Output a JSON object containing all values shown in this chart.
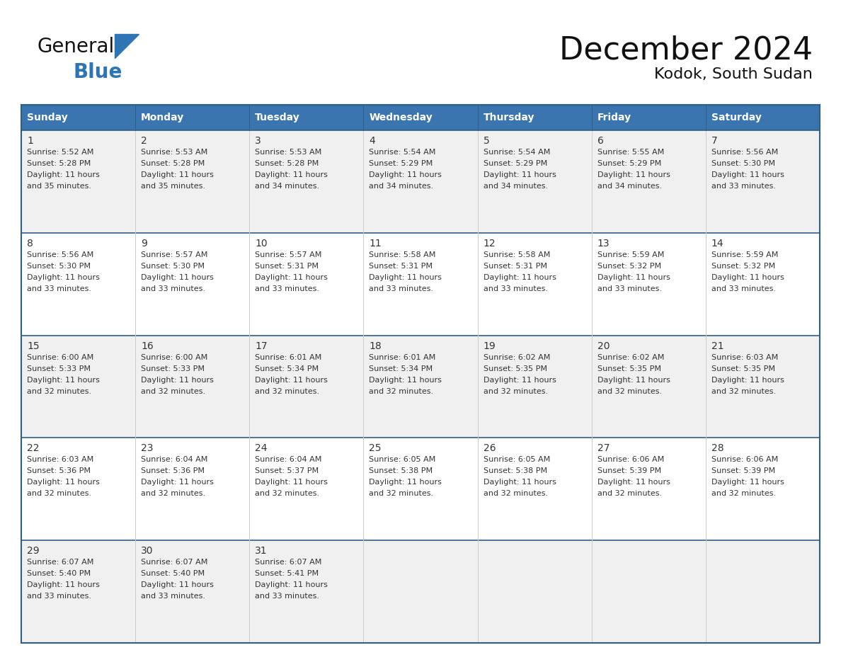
{
  "title": "December 2024",
  "subtitle": "Kodok, South Sudan",
  "days_of_week": [
    "Sunday",
    "Monday",
    "Tuesday",
    "Wednesday",
    "Thursday",
    "Friday",
    "Saturday"
  ],
  "header_bg": "#3a75b0",
  "header_text": "#FFFFFF",
  "cell_bg_white": "#FFFFFF",
  "cell_bg_gray": "#f0f0f0",
  "border_color_blue": "#2e5f8a",
  "border_color_light": "#cccccc",
  "day_num_color": "#333333",
  "text_color": "#333333",
  "title_color": "#111111",
  "logo_general_color": "#111111",
  "logo_blue_color": "#2e75b6",
  "weeks": [
    [
      {
        "day": 1,
        "sunrise": "5:52 AM",
        "sunset": "5:28 PM",
        "daylight": "11 hours and 35 minutes."
      },
      {
        "day": 2,
        "sunrise": "5:53 AM",
        "sunset": "5:28 PM",
        "daylight": "11 hours and 35 minutes."
      },
      {
        "day": 3,
        "sunrise": "5:53 AM",
        "sunset": "5:28 PM",
        "daylight": "11 hours and 34 minutes."
      },
      {
        "day": 4,
        "sunrise": "5:54 AM",
        "sunset": "5:29 PM",
        "daylight": "11 hours and 34 minutes."
      },
      {
        "day": 5,
        "sunrise": "5:54 AM",
        "sunset": "5:29 PM",
        "daylight": "11 hours and 34 minutes."
      },
      {
        "day": 6,
        "sunrise": "5:55 AM",
        "sunset": "5:29 PM",
        "daylight": "11 hours and 34 minutes."
      },
      {
        "day": 7,
        "sunrise": "5:56 AM",
        "sunset": "5:30 PM",
        "daylight": "11 hours and 33 minutes."
      }
    ],
    [
      {
        "day": 8,
        "sunrise": "5:56 AM",
        "sunset": "5:30 PM",
        "daylight": "11 hours and 33 minutes."
      },
      {
        "day": 9,
        "sunrise": "5:57 AM",
        "sunset": "5:30 PM",
        "daylight": "11 hours and 33 minutes."
      },
      {
        "day": 10,
        "sunrise": "5:57 AM",
        "sunset": "5:31 PM",
        "daylight": "11 hours and 33 minutes."
      },
      {
        "day": 11,
        "sunrise": "5:58 AM",
        "sunset": "5:31 PM",
        "daylight": "11 hours and 33 minutes."
      },
      {
        "day": 12,
        "sunrise": "5:58 AM",
        "sunset": "5:31 PM",
        "daylight": "11 hours and 33 minutes."
      },
      {
        "day": 13,
        "sunrise": "5:59 AM",
        "sunset": "5:32 PM",
        "daylight": "11 hours and 33 minutes."
      },
      {
        "day": 14,
        "sunrise": "5:59 AM",
        "sunset": "5:32 PM",
        "daylight": "11 hours and 33 minutes."
      }
    ],
    [
      {
        "day": 15,
        "sunrise": "6:00 AM",
        "sunset": "5:33 PM",
        "daylight": "11 hours and 32 minutes."
      },
      {
        "day": 16,
        "sunrise": "6:00 AM",
        "sunset": "5:33 PM",
        "daylight": "11 hours and 32 minutes."
      },
      {
        "day": 17,
        "sunrise": "6:01 AM",
        "sunset": "5:34 PM",
        "daylight": "11 hours and 32 minutes."
      },
      {
        "day": 18,
        "sunrise": "6:01 AM",
        "sunset": "5:34 PM",
        "daylight": "11 hours and 32 minutes."
      },
      {
        "day": 19,
        "sunrise": "6:02 AM",
        "sunset": "5:35 PM",
        "daylight": "11 hours and 32 minutes."
      },
      {
        "day": 20,
        "sunrise": "6:02 AM",
        "sunset": "5:35 PM",
        "daylight": "11 hours and 32 minutes."
      },
      {
        "day": 21,
        "sunrise": "6:03 AM",
        "sunset": "5:35 PM",
        "daylight": "11 hours and 32 minutes."
      }
    ],
    [
      {
        "day": 22,
        "sunrise": "6:03 AM",
        "sunset": "5:36 PM",
        "daylight": "11 hours and 32 minutes."
      },
      {
        "day": 23,
        "sunrise": "6:04 AM",
        "sunset": "5:36 PM",
        "daylight": "11 hours and 32 minutes."
      },
      {
        "day": 24,
        "sunrise": "6:04 AM",
        "sunset": "5:37 PM",
        "daylight": "11 hours and 32 minutes."
      },
      {
        "day": 25,
        "sunrise": "6:05 AM",
        "sunset": "5:38 PM",
        "daylight": "11 hours and 32 minutes."
      },
      {
        "day": 26,
        "sunrise": "6:05 AM",
        "sunset": "5:38 PM",
        "daylight": "11 hours and 32 minutes."
      },
      {
        "day": 27,
        "sunrise": "6:06 AM",
        "sunset": "5:39 PM",
        "daylight": "11 hours and 32 minutes."
      },
      {
        "day": 28,
        "sunrise": "6:06 AM",
        "sunset": "5:39 PM",
        "daylight": "11 hours and 32 minutes."
      }
    ],
    [
      {
        "day": 29,
        "sunrise": "6:07 AM",
        "sunset": "5:40 PM",
        "daylight": "11 hours and 33 minutes."
      },
      {
        "day": 30,
        "sunrise": "6:07 AM",
        "sunset": "5:40 PM",
        "daylight": "11 hours and 33 minutes."
      },
      {
        "day": 31,
        "sunrise": "6:07 AM",
        "sunset": "5:41 PM",
        "daylight": "11 hours and 33 minutes."
      },
      null,
      null,
      null,
      null
    ]
  ]
}
